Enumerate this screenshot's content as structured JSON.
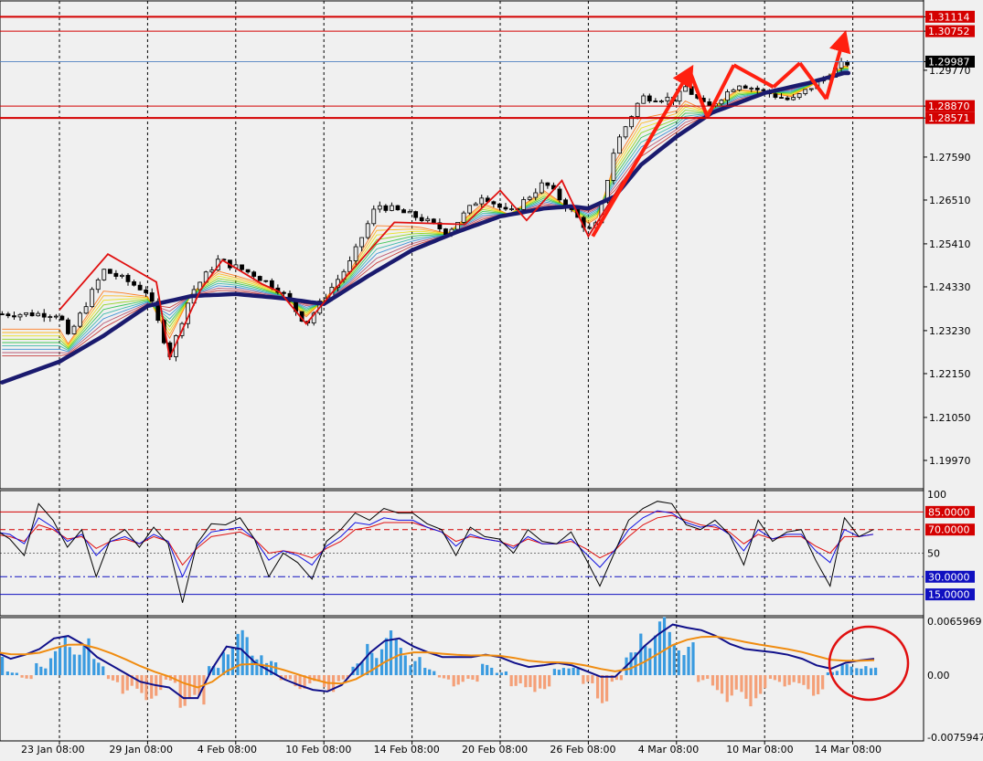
{
  "colors": {
    "background": "#f0f0f0",
    "frame": "#000000",
    "grid_dash": "#000000",
    "candle_up": "#e8e8e8",
    "candle_down": "#000000",
    "level_line": "#d40000",
    "price_tag": "#d40000",
    "price_tag_current": "#000000",
    "slow_ema": "#1a1a6e",
    "zigzag": "#e01010",
    "arrow": "#ff2010",
    "stoch_main": "#000000",
    "stoch_blue": "#1010e0",
    "stoch_red": "#e01010",
    "level_blue": "#1010c0",
    "macd_pos": "#3a9be0",
    "macd_neg": "#f4a078",
    "macd_line": "#10108a",
    "signal_line": "#f08c10",
    "highlight_circle": "#e01010"
  },
  "chart_data": [
    {
      "type": "candlestick",
      "symbol_pane": "price",
      "ylim": [
        1.1935,
        1.3142
      ],
      "y_ticks": [
        "1.31114",
        "1.30752",
        "1.29987",
        "1.29770",
        "1.28870",
        "1.28571",
        "1.27590",
        "1.26510",
        "1.25410",
        "1.24330",
        "1.23230",
        "1.22150",
        "1.21050",
        "1.19970"
      ],
      "horizontal_levels": [
        {
          "value": 1.31114,
          "label": "1.31114",
          "style": "thick"
        },
        {
          "value": 1.30752,
          "label": "1.30752",
          "style": "thin"
        },
        {
          "value": 1.2887,
          "label": "1.28870",
          "style": "thin"
        },
        {
          "value": 1.28571,
          "label": "1.28571",
          "style": "thick"
        }
      ],
      "current_price": {
        "value": 1.29987,
        "label": "1.29987"
      },
      "x_labels": [
        "23 Jan 08:00",
        "29 Jan 08:00",
        "4 Feb 08:00",
        "10 Feb 08:00",
        "14 Feb 08:00",
        "20 Feb 08:00",
        "26 Feb 08:00",
        "4 Mar 08:00",
        "10 Mar 08:00",
        "14 Mar 08:00"
      ],
      "x_ticks_idx": [
        0,
        1,
        2,
        3,
        4,
        5,
        6,
        7,
        8,
        9
      ],
      "price_path": [
        [
          0,
          1.2365
        ],
        [
          0.1,
          1.2305
        ],
        [
          0.5,
          1.2475
        ],
        [
          0.7,
          1.2455
        ],
        [
          1,
          1.242
        ],
        [
          1.25,
          1.226
        ],
        [
          1.5,
          1.242
        ],
        [
          1.8,
          1.25
        ],
        [
          2.2,
          1.2465
        ],
        [
          2.5,
          1.2425
        ],
        [
          2.8,
          1.234
        ],
        [
          3.0,
          1.2405
        ],
        [
          3.3,
          1.2495
        ],
        [
          3.6,
          1.264
        ],
        [
          4.1,
          1.2605
        ],
        [
          4.4,
          1.257
        ],
        [
          4.8,
          1.2665
        ],
        [
          5.1,
          1.2615
        ],
        [
          5.5,
          1.2695
        ],
        [
          5.8,
          1.2625
        ],
        [
          6.0,
          1.2575
        ],
        [
          6.1,
          1.259
        ],
        [
          6.3,
          1.2785
        ],
        [
          6.6,
          1.291
        ],
        [
          7.0,
          1.2905
        ],
        [
          7.1,
          1.2935
        ],
        [
          7.35,
          1.288
        ],
        [
          7.7,
          1.2945
        ],
        [
          8.3,
          1.29
        ],
        [
          8.5,
          1.293
        ],
        [
          8.9,
          1.2995
        ]
      ],
      "slow_ema_path": [
        [
          0,
          1.2245
        ],
        [
          0.5,
          1.231
        ],
        [
          1,
          1.2385
        ],
        [
          1.5,
          1.241
        ],
        [
          2.0,
          1.2415
        ],
        [
          2.5,
          1.2405
        ],
        [
          3.0,
          1.239
        ],
        [
          3.5,
          1.246
        ],
        [
          4.0,
          1.2525
        ],
        [
          4.5,
          1.257
        ],
        [
          5.0,
          1.261
        ],
        [
          5.5,
          1.263
        ],
        [
          5.8,
          1.2635
        ],
        [
          6.0,
          1.263
        ],
        [
          6.3,
          1.266
        ],
        [
          6.6,
          1.274
        ],
        [
          7.0,
          1.281
        ],
        [
          7.4,
          1.287
        ],
        [
          8.0,
          1.292
        ],
        [
          8.5,
          1.2945
        ],
        [
          8.9,
          1.297
        ]
      ],
      "zigzag": [
        [
          0,
          1.2375
        ],
        [
          0.55,
          1.2515
        ],
        [
          1.1,
          1.2445
        ],
        [
          1.25,
          1.2255
        ],
        [
          1.6,
          1.2425
        ],
        [
          1.85,
          1.25
        ],
        [
          2.3,
          1.244
        ],
        [
          2.5,
          1.242
        ],
        [
          2.8,
          1.234
        ],
        [
          3.1,
          1.242
        ],
        [
          3.8,
          1.2595
        ],
        [
          4.6,
          1.259
        ],
        [
          5.0,
          1.2675
        ],
        [
          5.3,
          1.26
        ],
        [
          5.7,
          1.27
        ],
        [
          6.0,
          1.256
        ],
        [
          6.4,
          1.27
        ]
      ],
      "arrows": [
        {
          "from": [
            6.05,
            1.256
          ],
          "to": [
            7.15,
            1.2975
          ]
        },
        {
          "from": [
            7.15,
            1.2975
          ],
          "to": [
            7.35,
            1.286
          ]
        },
        {
          "from": [
            7.35,
            1.286
          ],
          "to": [
            7.65,
            1.299
          ]
        },
        {
          "from": [
            7.65,
            1.299
          ],
          "to": [
            8.1,
            1.2935
          ]
        },
        {
          "from": [
            8.1,
            1.2935
          ],
          "to": [
            8.4,
            1.2995
          ]
        },
        {
          "from": [
            8.4,
            1.2995
          ],
          "to": [
            8.7,
            1.2905
          ]
        },
        {
          "from": [
            8.7,
            1.2905
          ],
          "to": [
            8.9,
            1.306
          ]
        }
      ]
    },
    {
      "type": "line",
      "symbol_pane": "stochastic",
      "ylim": [
        0,
        100
      ],
      "y_ticks": [
        {
          "value": 100,
          "label": "100"
        },
        {
          "value": 50,
          "label": "50"
        }
      ],
      "levels": [
        {
          "value": 85,
          "label": "85.0000",
          "color": "red",
          "style": "solid"
        },
        {
          "value": 70,
          "label": "70.0000",
          "color": "red",
          "style": "dash"
        },
        {
          "value": 30,
          "label": "30.0000",
          "color": "blue",
          "style": "dashdot"
        },
        {
          "value": 15,
          "label": "15.0000",
          "color": "blue",
          "style": "solid"
        }
      ],
      "series": [
        {
          "color": "stoch_main",
          "values": [
            70,
            62,
            48,
            92,
            78,
            55,
            70,
            30,
            62,
            70,
            55,
            72,
            58,
            8,
            58,
            75,
            74,
            80,
            62,
            30,
            50,
            42,
            28,
            60,
            70,
            84,
            78,
            88,
            84,
            84,
            75,
            70,
            48,
            72,
            64,
            62,
            50,
            70,
            60,
            58,
            68,
            46,
            22,
            50,
            78,
            88,
            94,
            92,
            74,
            70,
            78,
            66,
            40,
            78,
            60,
            68,
            70,
            44,
            22,
            80,
            64,
            70
          ]
        },
        {
          "color": "stoch_blue",
          "values": [
            68,
            66,
            58,
            80,
            72,
            60,
            66,
            48,
            60,
            64,
            58,
            66,
            60,
            30,
            56,
            68,
            70,
            72,
            62,
            44,
            52,
            48,
            40,
            56,
            64,
            76,
            74,
            80,
            78,
            78,
            72,
            68,
            56,
            66,
            62,
            60,
            54,
            64,
            58,
            58,
            62,
            50,
            38,
            52,
            70,
            80,
            86,
            84,
            76,
            72,
            74,
            66,
            52,
            70,
            62,
            66,
            66,
            52,
            42,
            70,
            64,
            66
          ]
        },
        {
          "color": "stoch_red",
          "values": [
            66,
            64,
            60,
            74,
            70,
            62,
            64,
            54,
            60,
            62,
            58,
            64,
            60,
            40,
            54,
            64,
            66,
            68,
            62,
            50,
            52,
            50,
            46,
            54,
            60,
            70,
            72,
            76,
            76,
            76,
            72,
            68,
            60,
            64,
            62,
            60,
            56,
            62,
            58,
            58,
            60,
            54,
            46,
            52,
            64,
            74,
            80,
            82,
            78,
            74,
            72,
            68,
            58,
            66,
            62,
            64,
            64,
            56,
            50,
            64,
            64,
            66
          ]
        }
      ]
    },
    {
      "type": "bar",
      "symbol_pane": "macd",
      "ylim": [
        -0.0075947,
        0.0065969
      ],
      "y_ticks": [
        {
          "value": 0.0065969,
          "label": "0.0065969"
        },
        {
          "value": 0.0,
          "label": "0.00"
        },
        {
          "value": -0.0075947,
          "label": "-0.0075947"
        }
      ],
      "histogram": [
        0.002,
        0.0005,
        -0.0004,
        0.0015,
        0.003,
        0.0045,
        0.004,
        0.0018,
        -0.0008,
        -0.002,
        -0.003,
        -0.0025,
        -0.001,
        -0.0035,
        -0.0042,
        0.001,
        0.0045,
        0.0048,
        0.0035,
        0.0015,
        -0.0008,
        -0.0015,
        -0.0012,
        -0.0018,
        -0.0008,
        0.0014,
        0.0038,
        0.0048,
        0.0042,
        0.002,
        0.0008,
        -0.0005,
        -0.0012,
        -0.0008,
        0.0012,
        0.0005,
        -0.0012,
        -0.0025,
        -0.0015,
        0.0012,
        0.0008,
        -0.0015,
        -0.003,
        -0.001,
        0.0025,
        0.0058,
        0.0062,
        0.0055,
        0.0035,
        -0.0008,
        -0.002,
        -0.003,
        -0.0035,
        -0.0025,
        -0.0008,
        -0.0012,
        -0.0018,
        -0.0022,
        0.0006,
        0.0012,
        0.0014,
        0.0008
      ],
      "macd_line": [
        0.0028,
        0.002,
        0.0025,
        0.0032,
        0.0045,
        0.0048,
        0.0038,
        0.0022,
        0.0012,
        0.0002,
        -0.0008,
        -0.0012,
        -0.0015,
        -0.0028,
        -0.0028,
        0.0008,
        0.0035,
        0.0032,
        0.0015,
        0.0005,
        -0.0005,
        -0.0012,
        -0.0018,
        -0.002,
        -0.0012,
        0.0008,
        0.0028,
        0.0042,
        0.0045,
        0.0035,
        0.0028,
        0.0022,
        0.0022,
        0.0022,
        0.0025,
        0.0022,
        0.0015,
        0.001,
        0.0012,
        0.0015,
        0.0012,
        0.0005,
        -0.0002,
        -0.0002,
        0.0015,
        0.0035,
        0.005,
        0.0062,
        0.0058,
        0.0055,
        0.0048,
        0.0038,
        0.0032,
        0.003,
        0.0028,
        0.0025,
        0.002,
        0.0012,
        0.0008,
        0.0015,
        0.0018,
        0.002
      ]
    }
  ]
}
